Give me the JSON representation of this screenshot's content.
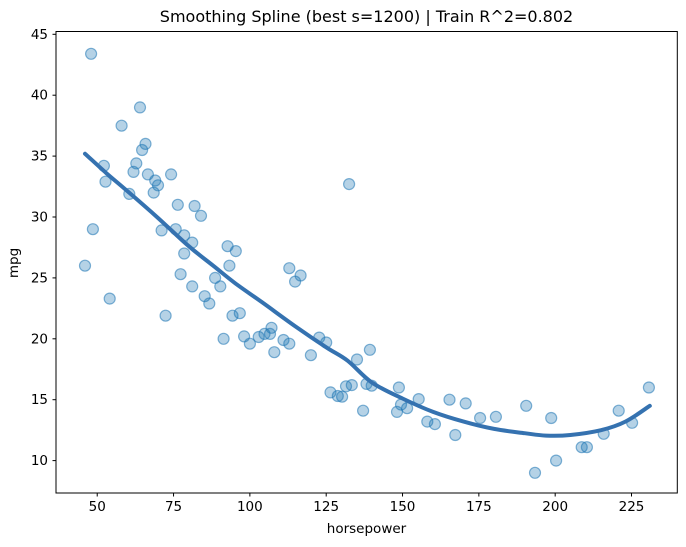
{
  "chart_data": {
    "type": "scatter",
    "title": "Smoothing Spline (best s=1200) | Train R^2=0.802",
    "xlabel": "horsepower",
    "ylabel": "mpg",
    "xlim": [
      36.5,
      240.0
    ],
    "ylim": [
      7.34,
      45.23
    ],
    "x_ticks": [
      50,
      75,
      100,
      125,
      150,
      175,
      200,
      225
    ],
    "y_ticks": [
      10,
      15,
      20,
      25,
      30,
      35,
      40,
      45
    ],
    "grid": false,
    "legend": "none",
    "marker_color": "#1f77b4",
    "marker_alpha": 0.33,
    "marker_edge_alpha": 0.55,
    "marker_radius": 5.5,
    "line_color": "#3572b0",
    "line_width": 4,
    "points": [
      [
        48,
        43.4
      ],
      [
        64,
        39.0
      ],
      [
        58,
        37.5
      ],
      [
        65.8,
        36.0
      ],
      [
        64.7,
        35.5
      ],
      [
        62.8,
        34.4
      ],
      [
        61.9,
        33.7
      ],
      [
        66.6,
        33.5
      ],
      [
        52.2,
        34.2
      ],
      [
        52.7,
        32.9
      ],
      [
        74.2,
        33.5
      ],
      [
        69.0,
        33.0
      ],
      [
        69.9,
        32.6
      ],
      [
        68.5,
        32.0
      ],
      [
        60.5,
        31.9
      ],
      [
        76.4,
        31.0
      ],
      [
        81.9,
        30.9
      ],
      [
        84.0,
        30.1
      ],
      [
        48.6,
        29.0
      ],
      [
        71.1,
        28.9
      ],
      [
        75.7,
        29.0
      ],
      [
        78.5,
        28.5
      ],
      [
        81.1,
        27.9
      ],
      [
        78.5,
        27.0
      ],
      [
        92.7,
        27.6
      ],
      [
        95.4,
        27.2
      ],
      [
        132.5,
        32.7
      ],
      [
        46,
        26.0
      ],
      [
        77.3,
        25.3
      ],
      [
        93.3,
        26.0
      ],
      [
        81.1,
        24.3
      ],
      [
        88.6,
        25.0
      ],
      [
        90.3,
        24.3
      ],
      [
        85.2,
        23.5
      ],
      [
        86.7,
        22.9
      ],
      [
        54.1,
        23.3
      ],
      [
        72.4,
        21.9
      ],
      [
        94.3,
        21.9
      ],
      [
        96.7,
        22.1
      ],
      [
        91.4,
        20.0
      ],
      [
        98.1,
        20.2
      ],
      [
        100.0,
        19.6
      ],
      [
        102.9,
        20.15
      ],
      [
        112.9,
        25.8
      ],
      [
        116.6,
        25.2
      ],
      [
        114.8,
        24.7
      ],
      [
        107.1,
        20.9
      ],
      [
        104.8,
        20.4
      ],
      [
        106.6,
        20.4
      ],
      [
        108.0,
        18.9
      ],
      [
        111.0,
        19.9
      ],
      [
        112.9,
        19.6
      ],
      [
        120.0,
        18.65
      ],
      [
        122.7,
        20.1
      ],
      [
        125.0,
        19.7
      ],
      [
        139.3,
        19.1
      ],
      [
        126.4,
        15.6
      ],
      [
        128.8,
        15.3
      ],
      [
        130.2,
        15.25
      ],
      [
        131.5,
        16.1
      ],
      [
        133.4,
        16.2
      ],
      [
        138.2,
        16.3
      ],
      [
        139.9,
        16.15
      ],
      [
        135.1,
        18.3
      ],
      [
        137.1,
        14.1
      ],
      [
        148.8,
        16.0
      ],
      [
        149.5,
        14.6
      ],
      [
        148.2,
        14.0
      ],
      [
        151.5,
        14.3
      ],
      [
        155.3,
        15.05
      ],
      [
        158.1,
        13.2
      ],
      [
        160.6,
        13.0
      ],
      [
        165.4,
        15.0
      ],
      [
        170.7,
        14.7
      ],
      [
        167.3,
        12.1
      ],
      [
        175.4,
        13.5
      ],
      [
        180.6,
        13.6
      ],
      [
        190.5,
        14.5
      ],
      [
        198.7,
        13.5
      ],
      [
        200.3,
        10.0
      ],
      [
        193.4,
        9.0
      ],
      [
        208.7,
        11.1
      ],
      [
        210.4,
        11.1
      ],
      [
        215.9,
        12.2
      ],
      [
        220.8,
        14.1
      ],
      [
        225.2,
        13.1
      ],
      [
        230.7,
        16.0
      ]
    ],
    "spline": [
      [
        46,
        35.2
      ],
      [
        53,
        33.6
      ],
      [
        60,
        32.1
      ],
      [
        70,
        29.9
      ],
      [
        80,
        27.6
      ],
      [
        88,
        26.0
      ],
      [
        95,
        24.6
      ],
      [
        104,
        23.0
      ],
      [
        115,
        21.0
      ],
      [
        125,
        19.3
      ],
      [
        132,
        18.2
      ],
      [
        140,
        16.4
      ],
      [
        150,
        15.1
      ],
      [
        160,
        14.0
      ],
      [
        170,
        13.2
      ],
      [
        180,
        12.6
      ],
      [
        190,
        12.25
      ],
      [
        197,
        12.05
      ],
      [
        205,
        12.1
      ],
      [
        215,
        12.5
      ],
      [
        223,
        13.2
      ],
      [
        231,
        14.5
      ]
    ]
  }
}
